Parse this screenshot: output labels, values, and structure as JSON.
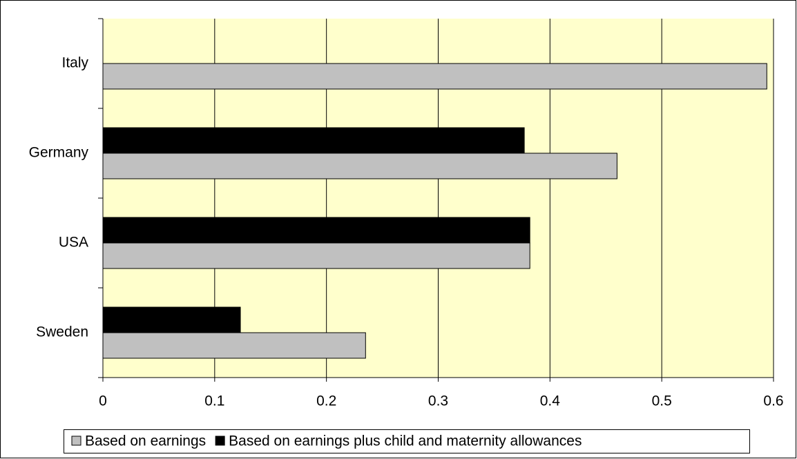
{
  "chart_data": {
    "type": "hbar",
    "categories": [
      "Sweden",
      "USA",
      "Germany",
      "Italy"
    ],
    "series": [
      {
        "name": "Based on earnings",
        "color": "#c0c0c0",
        "values": [
          0.235,
          0.382,
          0.46,
          0.594
        ]
      },
      {
        "name": "Based on earnings plus child and maternity allowances",
        "color": "#000000",
        "values": [
          0.123,
          0.382,
          0.377,
          null
        ]
      }
    ],
    "xlim": [
      0,
      0.6
    ],
    "xticks": [
      0,
      0.1,
      0.2,
      0.3,
      0.4,
      0.5,
      0.6
    ],
    "grid": true,
    "legend": "bottom",
    "background": "#ffffcc"
  }
}
